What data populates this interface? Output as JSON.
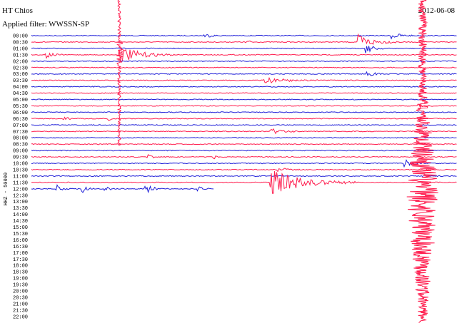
{
  "header": {
    "station": "HT Chios",
    "filter": "Applied filter: WWSSN-SP",
    "date": "2012-06-08"
  },
  "axis_label": "HHZ - 50000",
  "time_labels": [
    "00:00",
    "00:30",
    "01:00",
    "01:30",
    "02:00",
    "02:30",
    "03:00",
    "03:30",
    "04:00",
    "04:30",
    "05:00",
    "05:30",
    "06:00",
    "06:30",
    "07:00",
    "07:30",
    "08:00",
    "08:30",
    "09:00",
    "09:30",
    "10:00",
    "10:30",
    "11:00",
    "11:30",
    "12:00",
    "12:30",
    "13:00",
    "13:30",
    "14:00",
    "14:30",
    "15:00",
    "15:30",
    "16:00",
    "16:30",
    "17:00",
    "17:30",
    "18:00",
    "18:30",
    "19:00",
    "19:30",
    "20:00",
    "20:30",
    "21:00",
    "21:30",
    "22:00"
  ]
}
